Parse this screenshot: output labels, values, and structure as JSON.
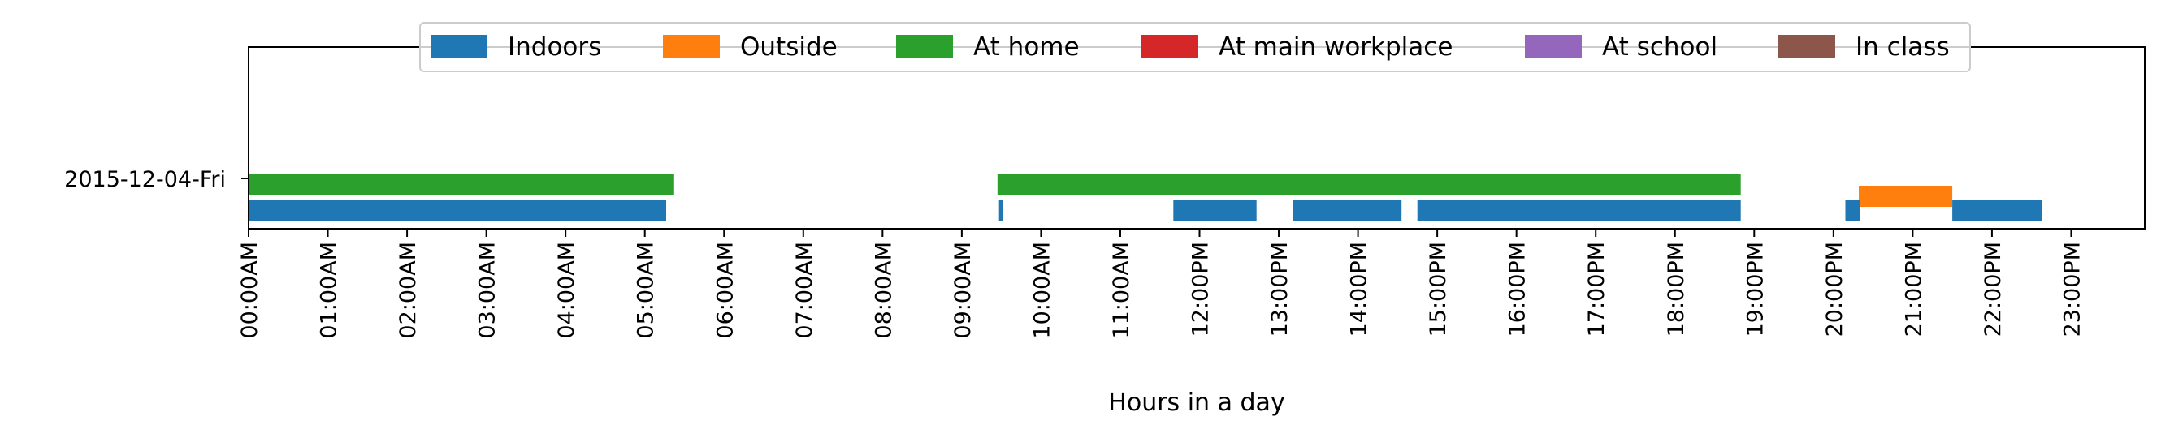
{
  "chart_data": {
    "type": "timeline",
    "xlabel": "Hours in a day",
    "x_unit": "hours",
    "xlim": [
      0,
      24
    ],
    "x_ticks": [
      {
        "value": 0,
        "label": "00:00AM"
      },
      {
        "value": 1,
        "label": "01:00AM"
      },
      {
        "value": 2,
        "label": "02:00AM"
      },
      {
        "value": 3,
        "label": "03:00AM"
      },
      {
        "value": 4,
        "label": "04:00AM"
      },
      {
        "value": 5,
        "label": "05:00AM"
      },
      {
        "value": 6,
        "label": "06:00AM"
      },
      {
        "value": 7,
        "label": "07:00AM"
      },
      {
        "value": 8,
        "label": "08:00AM"
      },
      {
        "value": 9,
        "label": "09:00AM"
      },
      {
        "value": 10,
        "label": "10:00AM"
      },
      {
        "value": 11,
        "label": "11:00AM"
      },
      {
        "value": 12,
        "label": "12:00PM"
      },
      {
        "value": 13,
        "label": "13:00PM"
      },
      {
        "value": 14,
        "label": "14:00PM"
      },
      {
        "value": 15,
        "label": "15:00PM"
      },
      {
        "value": 16,
        "label": "16:00PM"
      },
      {
        "value": 17,
        "label": "17:00PM"
      },
      {
        "value": 18,
        "label": "18:00PM"
      },
      {
        "value": 19,
        "label": "19:00PM"
      },
      {
        "value": 20,
        "label": "20:00PM"
      },
      {
        "value": 21,
        "label": "21:00PM"
      },
      {
        "value": 22,
        "label": "22:00PM"
      },
      {
        "value": 23,
        "label": "23:00PM"
      }
    ],
    "days": [
      "2015-12-04-Fri"
    ],
    "legend": {
      "location": "upper center",
      "entries": [
        {
          "name": "Indoors",
          "color": "#1f77b4"
        },
        {
          "name": "Outside",
          "color": "#ff7f0e"
        },
        {
          "name": "At home",
          "color": "#2ca02c"
        },
        {
          "name": "At main workplace",
          "color": "#d62728"
        },
        {
          "name": "At school",
          "color": "#9467bd"
        },
        {
          "name": "In class",
          "color": "#8c564b"
        }
      ]
    },
    "series": [
      {
        "name": "At home",
        "color": "#2ca02c",
        "lane": 1,
        "day": "2015-12-04-Fri",
        "intervals": [
          [
            0.0,
            5.37
          ],
          [
            9.45,
            18.83
          ]
        ]
      },
      {
        "name": "Outside",
        "color": "#ff7f0e",
        "lane": 2,
        "day": "2015-12-04-Fri",
        "intervals": [
          [
            20.32,
            21.5
          ]
        ]
      },
      {
        "name": "Indoors",
        "color": "#1f77b4",
        "lane": 0,
        "day": "2015-12-04-Fri",
        "intervals": [
          [
            0.0,
            5.27
          ],
          [
            9.47,
            9.52
          ],
          [
            11.67,
            12.72
          ],
          [
            13.18,
            14.55
          ],
          [
            14.75,
            18.83
          ],
          [
            20.15,
            20.33
          ],
          [
            21.5,
            22.63
          ]
        ]
      }
    ]
  }
}
